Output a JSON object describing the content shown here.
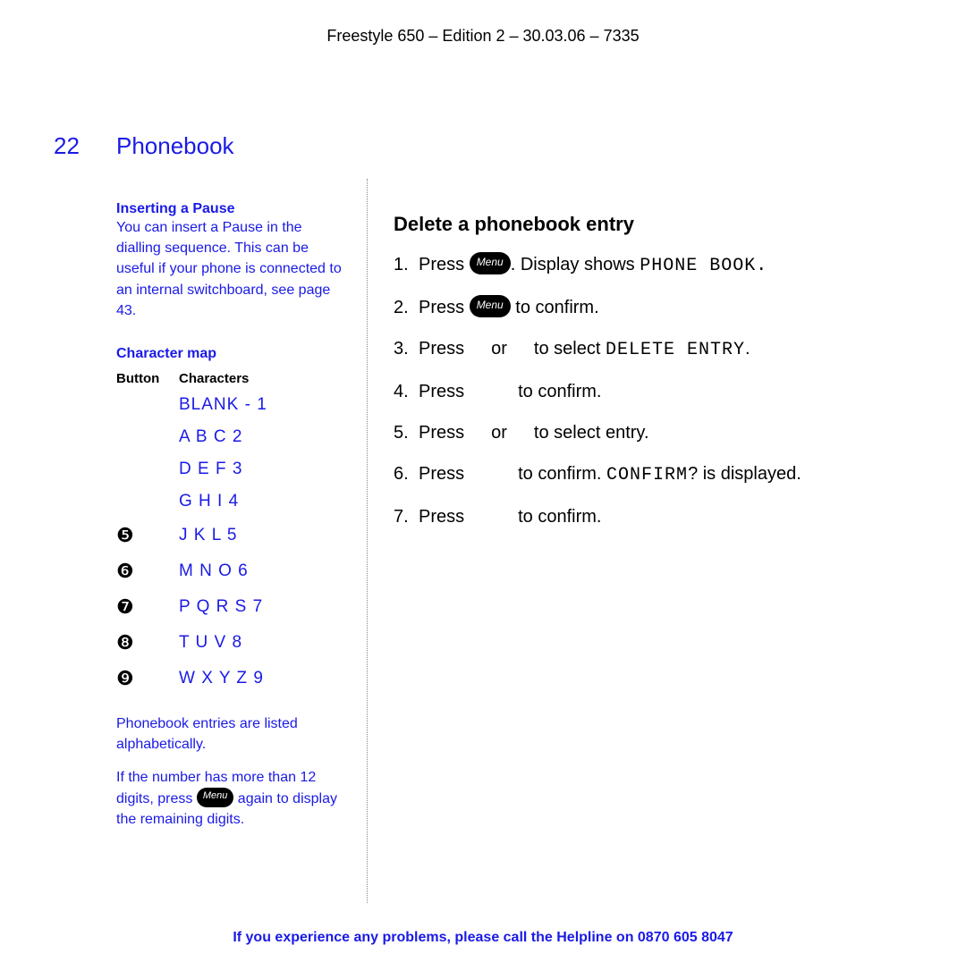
{
  "header": {
    "text": "Freestyle 650 – Edition 2 – 30.03.06 – 7335"
  },
  "page": {
    "number": "22",
    "title": "Phonebook"
  },
  "left": {
    "pause_heading": "Inserting a Pause",
    "pause_body": "You can insert a Pause in the dialling sequence. This can be useful if your phone is connected to an internal switchboard, see page 43.",
    "charmap_heading": "Character map",
    "table": {
      "col_button": "Button",
      "col_chars": "Characters",
      "rows": [
        {
          "button": "",
          "chars": "BLANK - 1"
        },
        {
          "button": "",
          "chars": "A B C 2"
        },
        {
          "button": "",
          "chars": "D E F 3"
        },
        {
          "button": "",
          "chars": "G H I 4"
        },
        {
          "button": "❺",
          "chars": "J K L 5"
        },
        {
          "button": "❻",
          "chars": "M N O 6"
        },
        {
          "button": "❼",
          "chars": "P Q R S 7"
        },
        {
          "button": "❽",
          "chars": "T U V 8"
        },
        {
          "button": "❾",
          "chars": "W X Y Z 9"
        }
      ]
    },
    "note_alpha": "Phonebook entries are listed alphabetically.",
    "note_digits_pre": "If the number has more than 12 digits, press ",
    "note_digits_menu": "Menu",
    "note_digits_post": " again to display the remaining digits."
  },
  "right": {
    "title": "Delete a phonebook entry",
    "menu_label": "Menu",
    "steps": {
      "s1_pre": "Press ",
      "s1_mid": ". Display shows ",
      "s1_lcd_a": "PHONE B",
      "s1_lcd_b": "OOK.",
      "s2_pre": "Press ",
      "s2_post": " to confirm.",
      "s3_pre": "Press",
      "s3_or": "or",
      "s3_post": "to select ",
      "s3_lcd": "DELETE ENTRY",
      "s3_dot": ".",
      "s4_pre": "Press",
      "s4_post": "to confirm.",
      "s5_pre": "Press",
      "s5_or": "or",
      "s5_post": "to select entry.",
      "s6_pre": "Press",
      "s6_mid": "to confirm. ",
      "s6_lcd": "CONFIRM",
      "s6_post": "? is displayed.",
      "s7_pre": "Press",
      "s7_post": "to confirm."
    }
  },
  "footer": {
    "pre": "If you experience any problems, please call the Helpline on ",
    "num": "0870 605 8047"
  },
  "colors": {
    "link_blue": "#1a1ae6",
    "text_black": "#000000",
    "background": "#ffffff"
  }
}
